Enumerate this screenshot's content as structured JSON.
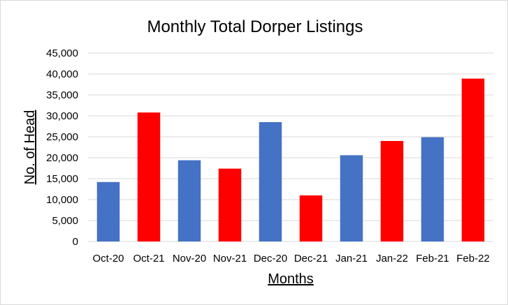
{
  "chart_data": {
    "type": "bar",
    "title": "Monthly Total Dorper Listings",
    "xlabel": "Months",
    "ylabel": "No. of Head",
    "categories": [
      "Oct-20",
      "Oct-21",
      "Nov-20",
      "Nov-21",
      "Dec-20",
      "Dec-21",
      "Jan-21",
      "Jan-22",
      "Feb-21",
      "Feb-22"
    ],
    "values": [
      14200,
      30800,
      19400,
      17400,
      28500,
      11000,
      20600,
      24000,
      24900,
      38900
    ],
    "bar_colors": [
      "#4472C4",
      "#FF0000",
      "#4472C4",
      "#FF0000",
      "#4472C4",
      "#FF0000",
      "#4472C4",
      "#FF0000",
      "#4472C4",
      "#FF0000"
    ],
    "ylim": [
      0,
      45000
    ],
    "yticks": [
      0,
      5000,
      10000,
      15000,
      20000,
      25000,
      30000,
      35000,
      40000,
      45000
    ],
    "ytick_labels": [
      "0",
      "5,000",
      "10,000",
      "15,000",
      "20,000",
      "25,000",
      "30,000",
      "35,000",
      "40,000",
      "45,000"
    ],
    "grid": true,
    "grid_color": "#d9d9d9",
    "legend": "none"
  }
}
